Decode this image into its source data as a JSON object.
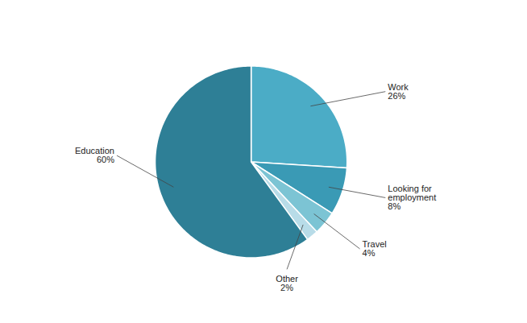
{
  "chart_data": {
    "type": "pie",
    "categories": [
      "Work",
      "Looking for\nemployment",
      "Travel",
      "Other",
      "Education"
    ],
    "values": [
      26,
      8,
      4,
      2,
      60
    ],
    "value_labels": [
      "26%",
      "8%",
      "4%",
      "2%",
      "60%"
    ],
    "colors": [
      "#4bacc6",
      "#3a9ab5",
      "#7cc4d4",
      "#b8dce8",
      "#2e7f96"
    ],
    "data_labels": true
  }
}
